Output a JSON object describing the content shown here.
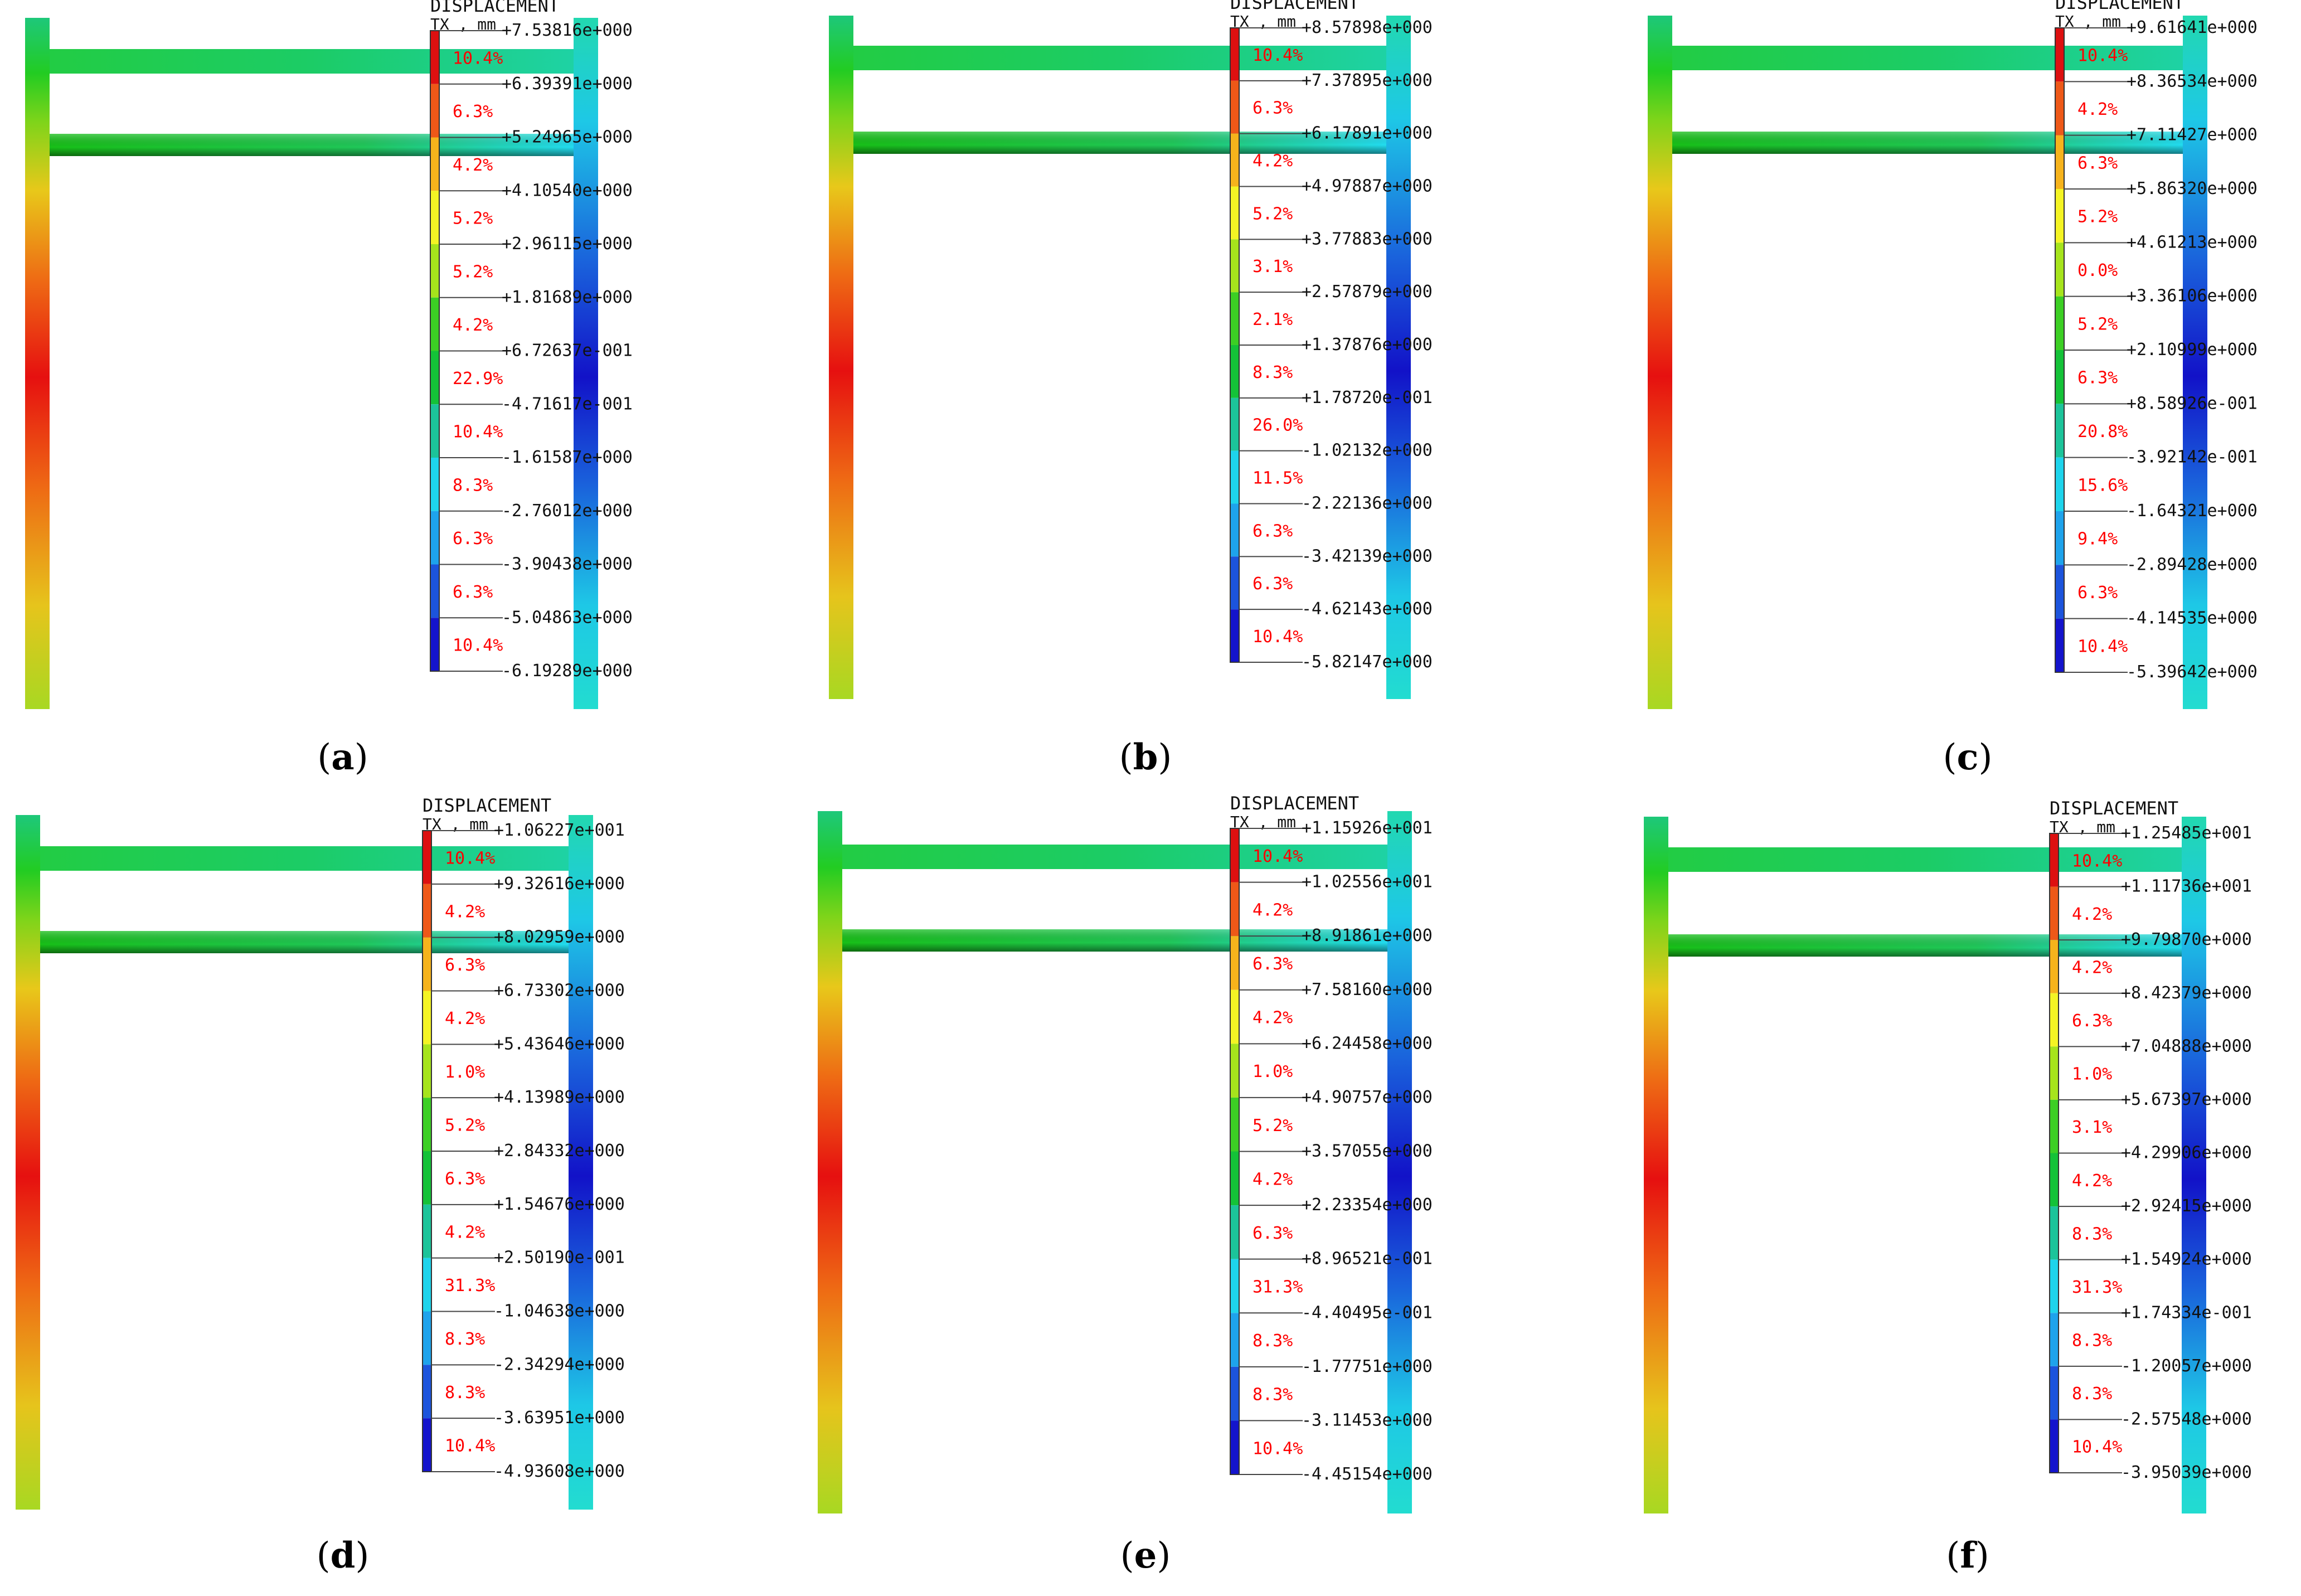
{
  "panels": [
    {
      "caption_letter": "a",
      "legend_title": "DISPLACEMENT",
      "legend_subtitle": "TX , mm",
      "values": [
        "+7.53816e+000",
        "+6.39391e+000",
        "+5.24965e+000",
        "+4.10540e+000",
        "+2.96115e+000",
        "+1.81689e+000",
        "+6.72637e-001",
        "-4.71617e-001",
        "-1.61587e+000",
        "-2.76012e+000",
        "-3.90438e+000",
        "-5.04863e+000",
        "-6.19289e+000"
      ],
      "percents": [
        "10.4%",
        "6.3%",
        "4.2%",
        "5.2%",
        "5.2%",
        "4.2%",
        "22.9%",
        "10.4%",
        "8.3%",
        "6.3%",
        "6.3%",
        "10.4%"
      ]
    },
    {
      "caption_letter": "b",
      "legend_title": "DISPLACEMENT",
      "legend_subtitle": "TX , mm",
      "values": [
        "+8.57898e+000",
        "+7.37895e+000",
        "+6.17891e+000",
        "+4.97887e+000",
        "+3.77883e+000",
        "+2.57879e+000",
        "+1.37876e+000",
        "+1.78720e-001",
        "-1.02132e+000",
        "-2.22136e+000",
        "-3.42139e+000",
        "-4.62143e+000",
        "-5.82147e+000"
      ],
      "percents": [
        "10.4%",
        "6.3%",
        "4.2%",
        "5.2%",
        "3.1%",
        "2.1%",
        "8.3%",
        "26.0%",
        "11.5%",
        "6.3%",
        "6.3%",
        "10.4%"
      ]
    },
    {
      "caption_letter": "c",
      "legend_title": "DISPLACEMENT",
      "legend_subtitle": "TX , mm",
      "values": [
        "+9.61641e+000",
        "+8.36534e+000",
        "+7.11427e+000",
        "+5.86320e+000",
        "+4.61213e+000",
        "+3.36106e+000",
        "+2.10999e+000",
        "+8.58926e-001",
        "-3.92142e-001",
        "-1.64321e+000",
        "-2.89428e+000",
        "-4.14535e+000",
        "-5.39642e+000"
      ],
      "percents": [
        "10.4%",
        "4.2%",
        "6.3%",
        "5.2%",
        "0.0%",
        "5.2%",
        "6.3%",
        "20.8%",
        "15.6%",
        "9.4%",
        "6.3%",
        "10.4%"
      ]
    },
    {
      "caption_letter": "d",
      "legend_title": "DISPLACEMENT",
      "legend_subtitle": "TX , mm",
      "values": [
        "+1.06227e+001",
        "+9.32616e+000",
        "+8.02959e+000",
        "+6.73302e+000",
        "+5.43646e+000",
        "+4.13989e+000",
        "+2.84332e+000",
        "+1.54676e+000",
        "+2.50190e-001",
        "-1.04638e+000",
        "-2.34294e+000",
        "-3.63951e+000",
        "-4.93608e+000"
      ],
      "percents": [
        "10.4%",
        "4.2%",
        "6.3%",
        "4.2%",
        "1.0%",
        "5.2%",
        "6.3%",
        "4.2%",
        "31.3%",
        "8.3%",
        "8.3%",
        "10.4%"
      ]
    },
    {
      "caption_letter": "e",
      "legend_title": "DISPLACEMENT",
      "legend_subtitle": "TX , mm",
      "values": [
        "+1.15926e+001",
        "+1.02556e+001",
        "+8.91861e+000",
        "+7.58160e+000",
        "+6.24458e+000",
        "+4.90757e+000",
        "+3.57055e+000",
        "+2.23354e+000",
        "+8.96521e-001",
        "-4.40495e-001",
        "-1.77751e+000",
        "-3.11453e+000",
        "-4.45154e+000"
      ],
      "percents": [
        "10.4%",
        "4.2%",
        "6.3%",
        "4.2%",
        "1.0%",
        "5.2%",
        "4.2%",
        "6.3%",
        "31.3%",
        "8.3%",
        "8.3%",
        "10.4%"
      ]
    },
    {
      "caption_letter": "f",
      "legend_title": "DISPLACEMENT",
      "legend_subtitle": "TX , mm",
      "values": [
        "+1.25485e+001",
        "+1.11736e+001",
        "+9.79870e+000",
        "+8.42379e+000",
        "+7.04888e+000",
        "+5.67397e+000",
        "+4.29906e+000",
        "+2.92415e+000",
        "+1.54924e+000",
        "+1.74334e-001",
        "-1.20057e+000",
        "-2.57548e+000",
        "-3.95039e+000"
      ],
      "percents": [
        "10.4%",
        "4.2%",
        "4.2%",
        "6.3%",
        "1.0%",
        "3.1%",
        "4.2%",
        "8.3%",
        "31.3%",
        "8.3%",
        "8.3%",
        "10.4%"
      ]
    }
  ],
  "colors": {
    "legend_bands": [
      "#dd1010",
      "#ee5818",
      "#f6b31c",
      "#f4f424",
      "#a6e41c",
      "#3ccf24",
      "#14c238",
      "#1cc49a",
      "#1ed4ec",
      "#1ea3ec",
      "#1c54dc",
      "#1414cc"
    ],
    "percent_text": "#ff0000",
    "label_text": "#111111"
  }
}
